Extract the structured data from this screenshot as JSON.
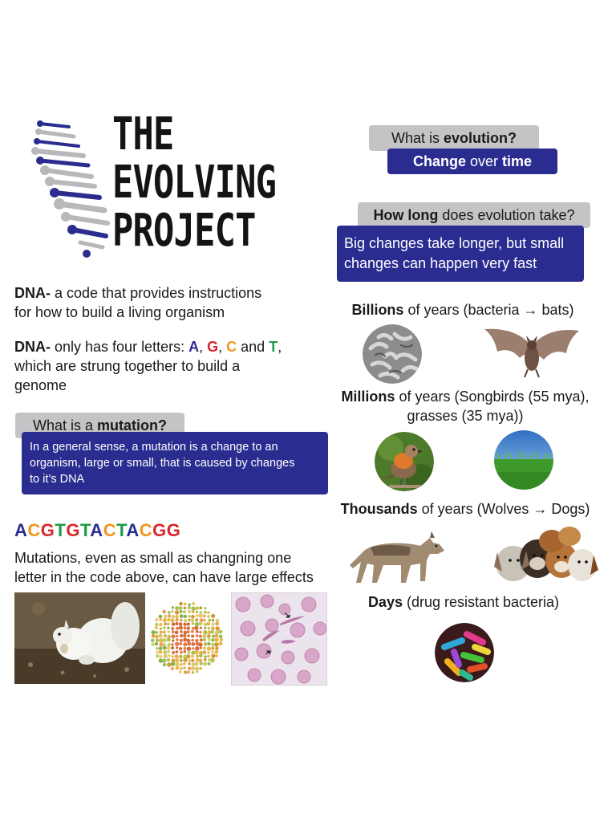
{
  "title": {
    "line1": "THE",
    "line2": "EVOLVING",
    "line3": "PROJECT"
  },
  "evolution": {
    "question_prefix": "What is ",
    "question_bold": "evolution?",
    "answer_bold1": "Change",
    "answer_mid": " over ",
    "answer_bold2": "time"
  },
  "how_long": {
    "question_bold": "How long",
    "question_rest": " does evolution take?",
    "answer_line1": "Big changes take longer, but small",
    "answer_line2": "changes can happen very fast"
  },
  "timescales": {
    "billions_bold": "Billions",
    "billions_rest": " of years (bacteria → bats)",
    "millions_bold": "Millions",
    "millions_rest1": " of years (Songbirds (55 mya),",
    "millions_rest2": "grasses (35 mya))",
    "thousands_bold": "Thousands",
    "thousands_rest": " of years (Wolves → Dogs)",
    "days_bold": "Days",
    "days_rest": " (drug resistant bacteria)"
  },
  "dna": {
    "def1_bold": "DNA-",
    "def1_rest1": " a code that provides instructions",
    "def1_rest2": "for how to build a living organism",
    "def2_bold": "DNA-",
    "def2_rest": " only has four letters: ",
    "letter_a": "A",
    "letter_g": "G",
    "letter_c": "C",
    "letter_t": "T",
    "sep1": ", ",
    "sep2": ", ",
    "and": " and ",
    "end": ",",
    "def2_line2": "which are strung together to build a",
    "def2_line3": "genome"
  },
  "mutation": {
    "question_prefix": "What is a ",
    "question_bold": "mutation?",
    "answer_line1": "In a general sense, a mutation is a change to an",
    "answer_line2": "organism, large or small, that is caused by changes",
    "answer_line3": "to it’s DNA"
  },
  "sequence": {
    "letters": [
      "A",
      "C",
      "G",
      "T",
      "G",
      "T",
      "A",
      "C",
      "T",
      "A",
      "C",
      "G",
      "G"
    ]
  },
  "mutation_effect": {
    "line1": "Mutations, even as small as changning one",
    "line2": "letter in the code above, can have large effects"
  },
  "colors": {
    "blue": "#2a2d8f",
    "grey": "#c4c4c6",
    "red": "#d9262a",
    "orange": "#f0951f",
    "green": "#1d9a4a"
  },
  "icons": {
    "logo": "dna-helix-icon",
    "arrow": "right-arrow"
  }
}
